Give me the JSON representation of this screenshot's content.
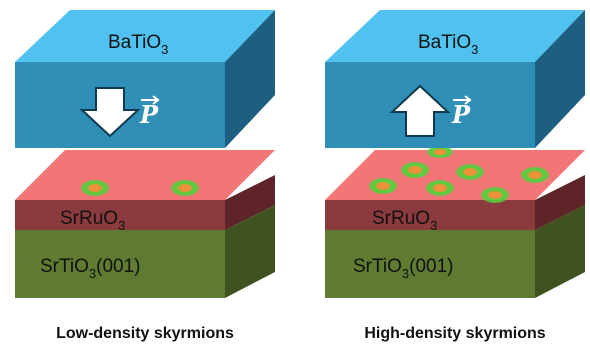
{
  "colors": {
    "bto_top": "#4fc2ef",
    "bto_front": "#2f8fb6",
    "bto_side": "#1d5f80",
    "sro_top": "#f27676",
    "sro_front": "#8b3b3e",
    "sro_side": "#5e2427",
    "sto_front": "#5f7b32",
    "sto_side": "#3f5321",
    "skyrmion_ring": "#52d13c",
    "skyrmion_core": "#f0913a",
    "arrow_fill": "#ffffff",
    "arrow_stroke": "#0d3a4f"
  },
  "panels": [
    {
      "top_layer": {
        "name": "BaTiO",
        "sub": "3"
      },
      "polarization_symbol": "P",
      "polarization_direction": "down",
      "mid_layer": {
        "name": "SrRuO",
        "sub": "3"
      },
      "substrate": {
        "name": "SrTiO",
        "sub": "3",
        "suffix": "(001)"
      },
      "skyrmion_count": 2,
      "caption": "Low-density skyrmions"
    },
    {
      "top_layer": {
        "name": "BaTiO",
        "sub": "3"
      },
      "polarization_symbol": "P",
      "polarization_direction": "up",
      "mid_layer": {
        "name": "SrRuO",
        "sub": "3"
      },
      "substrate": {
        "name": "SrTiO",
        "sub": "3",
        "suffix": "(001)"
      },
      "skyrmion_count": 7,
      "caption": "High-density skyrmions"
    }
  ]
}
